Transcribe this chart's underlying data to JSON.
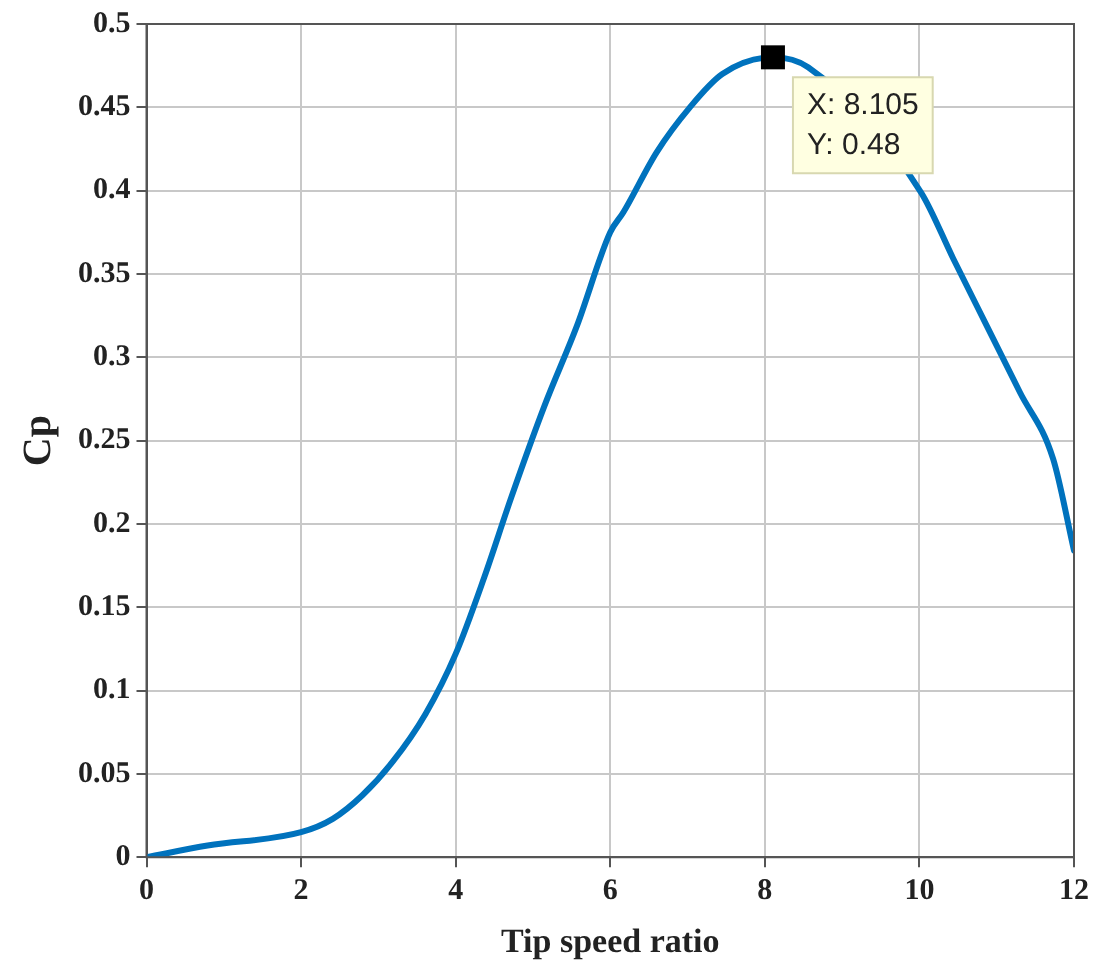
{
  "chart_data": {
    "type": "line",
    "xlabel": "Tip speed ratio",
    "ylabel": "Cp",
    "series": [
      {
        "color": "#0072bd",
        "x": [
          0,
          0.79,
          2,
          2.41,
          2.79,
          3.18,
          3.61,
          4,
          4.37,
          4.72,
          5.15,
          5.57,
          6,
          6.17,
          6.6,
          7.03,
          7.45,
          8.105,
          8.56,
          10.02,
          10.44,
          10.87,
          11.3,
          11.73,
          12
        ],
        "values": [
          0,
          0.007,
          0.015,
          0.023,
          0.037,
          0.057,
          0.086,
          0.122,
          0.168,
          0.216,
          0.271,
          0.319,
          0.375,
          0.387,
          0.423,
          0.45,
          0.47,
          0.48,
          0.474,
          0.399,
          0.359,
          0.319,
          0.279,
          0.239,
          0.184
        ]
      }
    ],
    "xlim": [
      0,
      12
    ],
    "xticks": [
      0,
      2,
      4,
      6,
      8,
      10,
      12
    ],
    "ylim": [
      0,
      0.5
    ],
    "yticks": [
      0,
      0.05,
      0.1,
      0.15,
      0.2,
      0.25,
      0.3,
      0.35,
      0.4,
      0.45,
      0.5
    ],
    "grid": true,
    "legend": false,
    "marker": "none",
    "line_style": "solid",
    "annotations": [
      {
        "text": "X: 8.105\nY: 0.48",
        "x": 8.105,
        "y": 0.48
      }
    ]
  }
}
